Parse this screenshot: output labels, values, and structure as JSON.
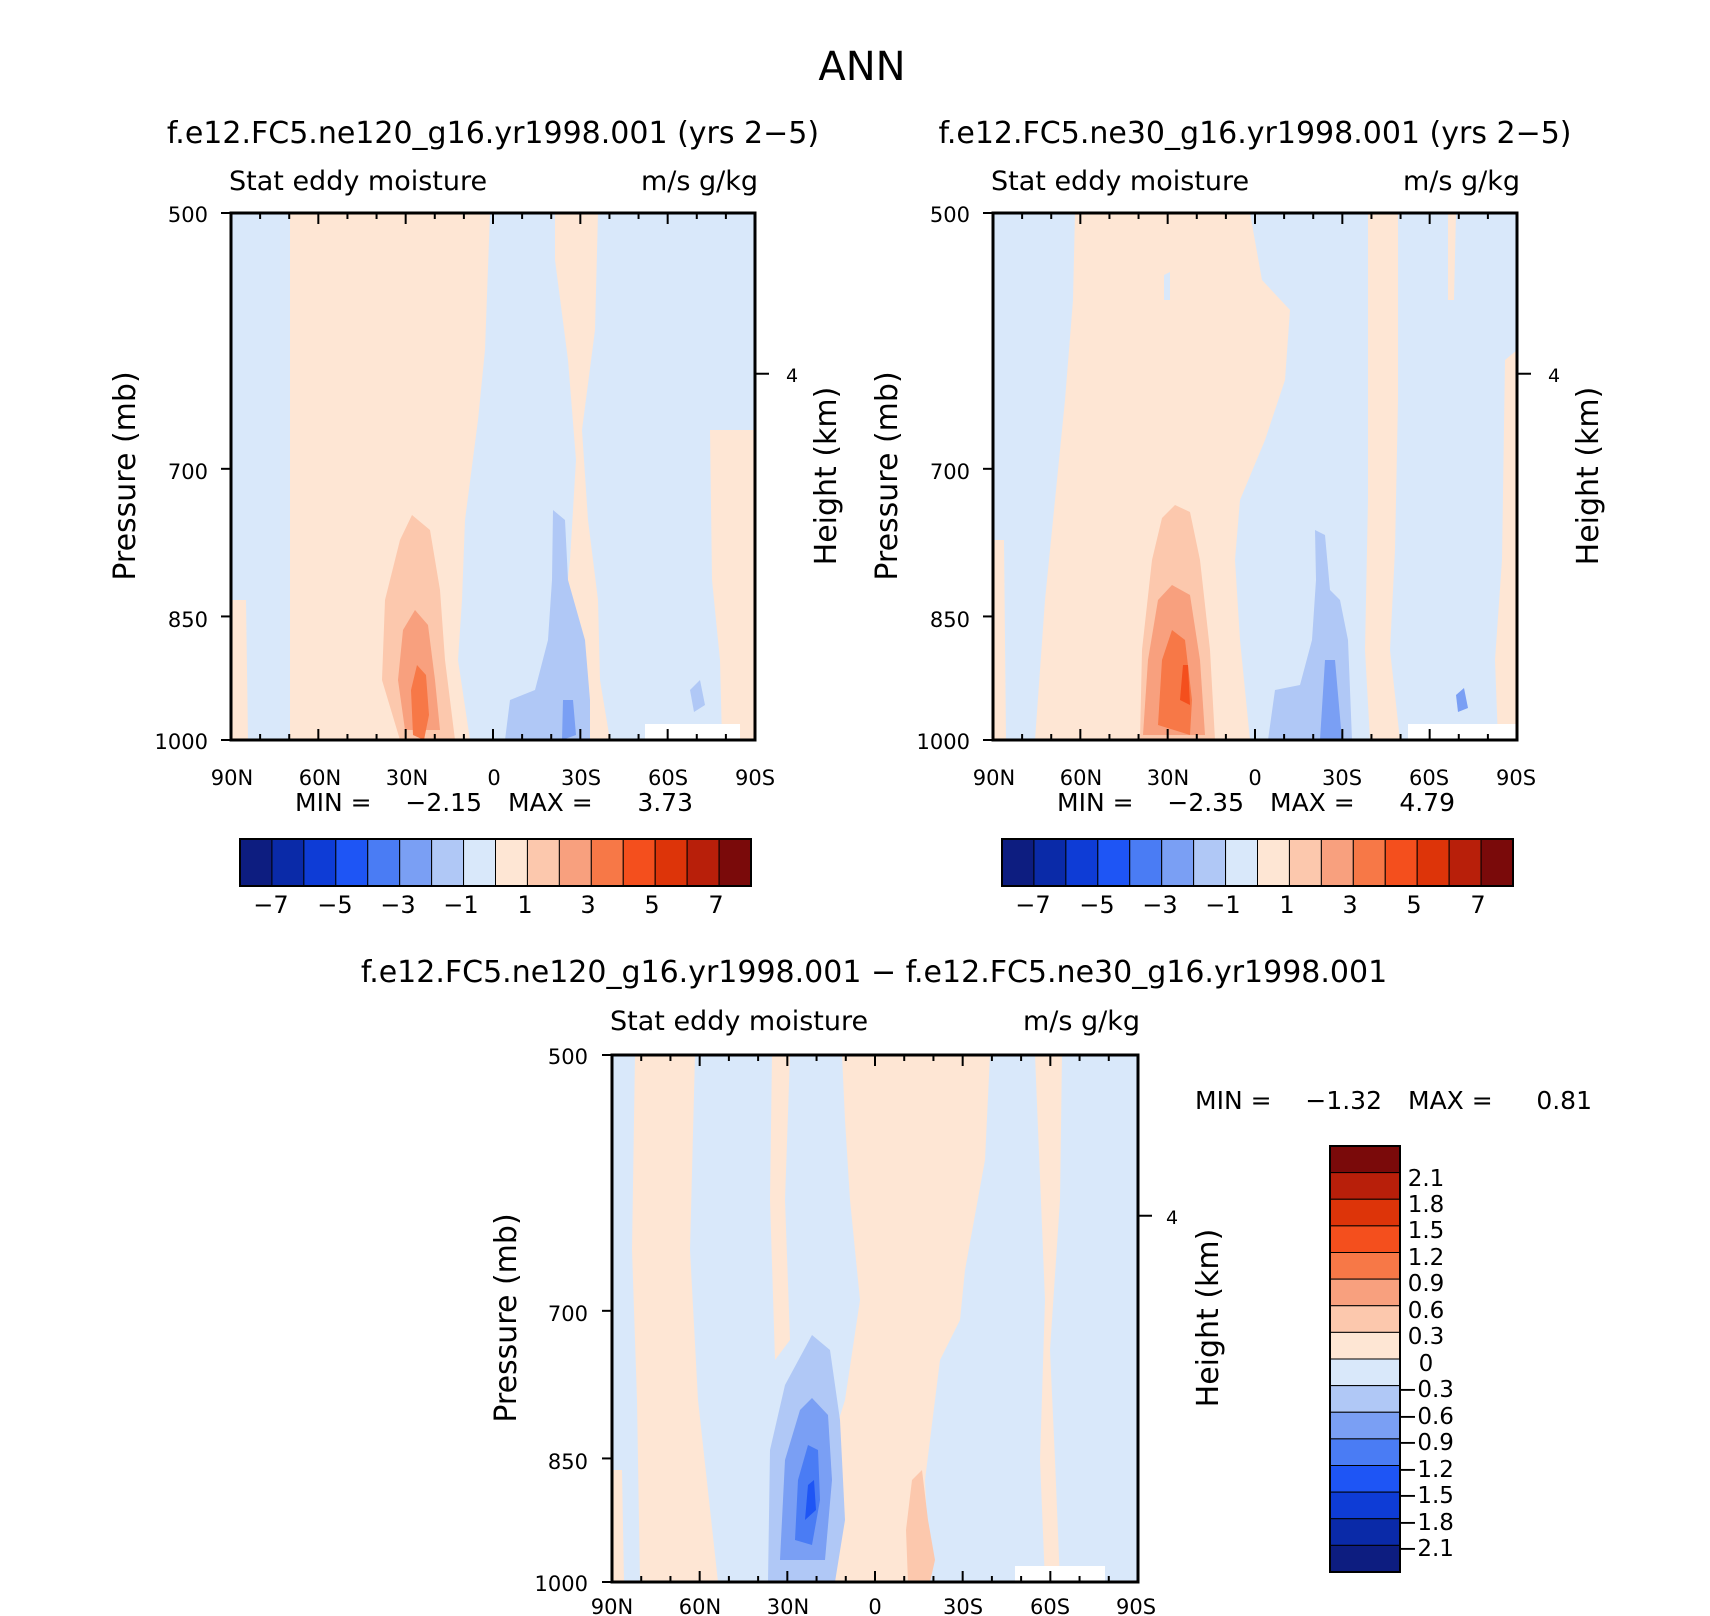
{
  "figure_title": "ANN",
  "colors": {
    "neg": [
      "#0d1d80",
      "#0a2aa8",
      "#0e3cd6",
      "#1e55f5",
      "#4a7cf4",
      "#7a9ff4",
      "#b0c8f6",
      "#d9e8fa"
    ],
    "pos": [
      "#fee6d4",
      "#fcc8ad",
      "#f8a07e",
      "#f77847",
      "#f44f1d",
      "#dd3409",
      "#b81f0a",
      "#7a0a0a"
    ]
  },
  "chart_data": [
    {
      "type": "contour",
      "title": "f.e12.FC5.ne120_g16.yr1998.001 (yrs 2−5)",
      "subtitle_left": "Stat eddy moisture",
      "subtitle_right": "m/s g/kg",
      "ylabel": "Pressure (mb)",
      "ylabel_right": "Height (km)",
      "x_ticks": [
        "90N",
        "60N",
        "30N",
        "0",
        "30S",
        "60S",
        "90S"
      ],
      "y_ticks": [
        "500",
        "700",
        "850",
        "1000"
      ],
      "y_ticks_right": [
        "4"
      ],
      "ylim": [
        1000,
        500
      ],
      "min_label": "MIN =",
      "min_value": "−2.15",
      "max_label": "MAX =",
      "max_value": "3.73",
      "min": -2.15,
      "max": 3.73,
      "colorbar": {
        "orientation": "horizontal",
        "labels": [
          "−7",
          "−5",
          "−3",
          "−1",
          "1",
          "3",
          "5",
          "7"
        ]
      }
    },
    {
      "type": "contour",
      "title": "f.e12.FC5.ne30_g16.yr1998.001 (yrs 2−5)",
      "subtitle_left": "Stat eddy moisture",
      "subtitle_right": "m/s g/kg",
      "ylabel": "Pressure (mb)",
      "ylabel_right": "Height (km)",
      "x_ticks": [
        "90N",
        "60N",
        "30N",
        "0",
        "30S",
        "60S",
        "90S"
      ],
      "y_ticks": [
        "500",
        "700",
        "850",
        "1000"
      ],
      "y_ticks_right": [
        "4"
      ],
      "ylim": [
        1000,
        500
      ],
      "min_label": "MIN =",
      "min_value": "−2.35",
      "max_label": "MAX =",
      "max_value": "4.79",
      "min": -2.35,
      "max": 4.79,
      "colorbar": {
        "orientation": "horizontal",
        "labels": [
          "−7",
          "−5",
          "−3",
          "−1",
          "1",
          "3",
          "5",
          "7"
        ]
      }
    },
    {
      "type": "contour",
      "title": "f.e12.FC5.ne120_g16.yr1998.001 − f.e12.FC5.ne30_g16.yr1998.001",
      "subtitle_left": "Stat eddy moisture",
      "subtitle_right": "m/s g/kg",
      "ylabel": "Pressure (mb)",
      "ylabel_right": "Height (km)",
      "x_ticks": [
        "90N",
        "60N",
        "30N",
        "0",
        "30S",
        "60S",
        "90S"
      ],
      "y_ticks": [
        "500",
        "700",
        "850",
        "1000"
      ],
      "y_ticks_right": [
        "4"
      ],
      "ylim": [
        1000,
        500
      ],
      "min_label": "MIN =",
      "min_value": "−1.32",
      "max_label": "MAX =",
      "max_value": "0.81",
      "min": -1.32,
      "max": 0.81,
      "colorbar": {
        "orientation": "vertical",
        "labels": [
          "2.1",
          "1.8",
          "1.5",
          "1.2",
          "0.9",
          "0.6",
          "0.3",
          "0",
          "−0.3",
          "−0.6",
          "−0.9",
          "−1.2",
          "−1.5",
          "−1.8",
          "−2.1"
        ]
      }
    }
  ]
}
